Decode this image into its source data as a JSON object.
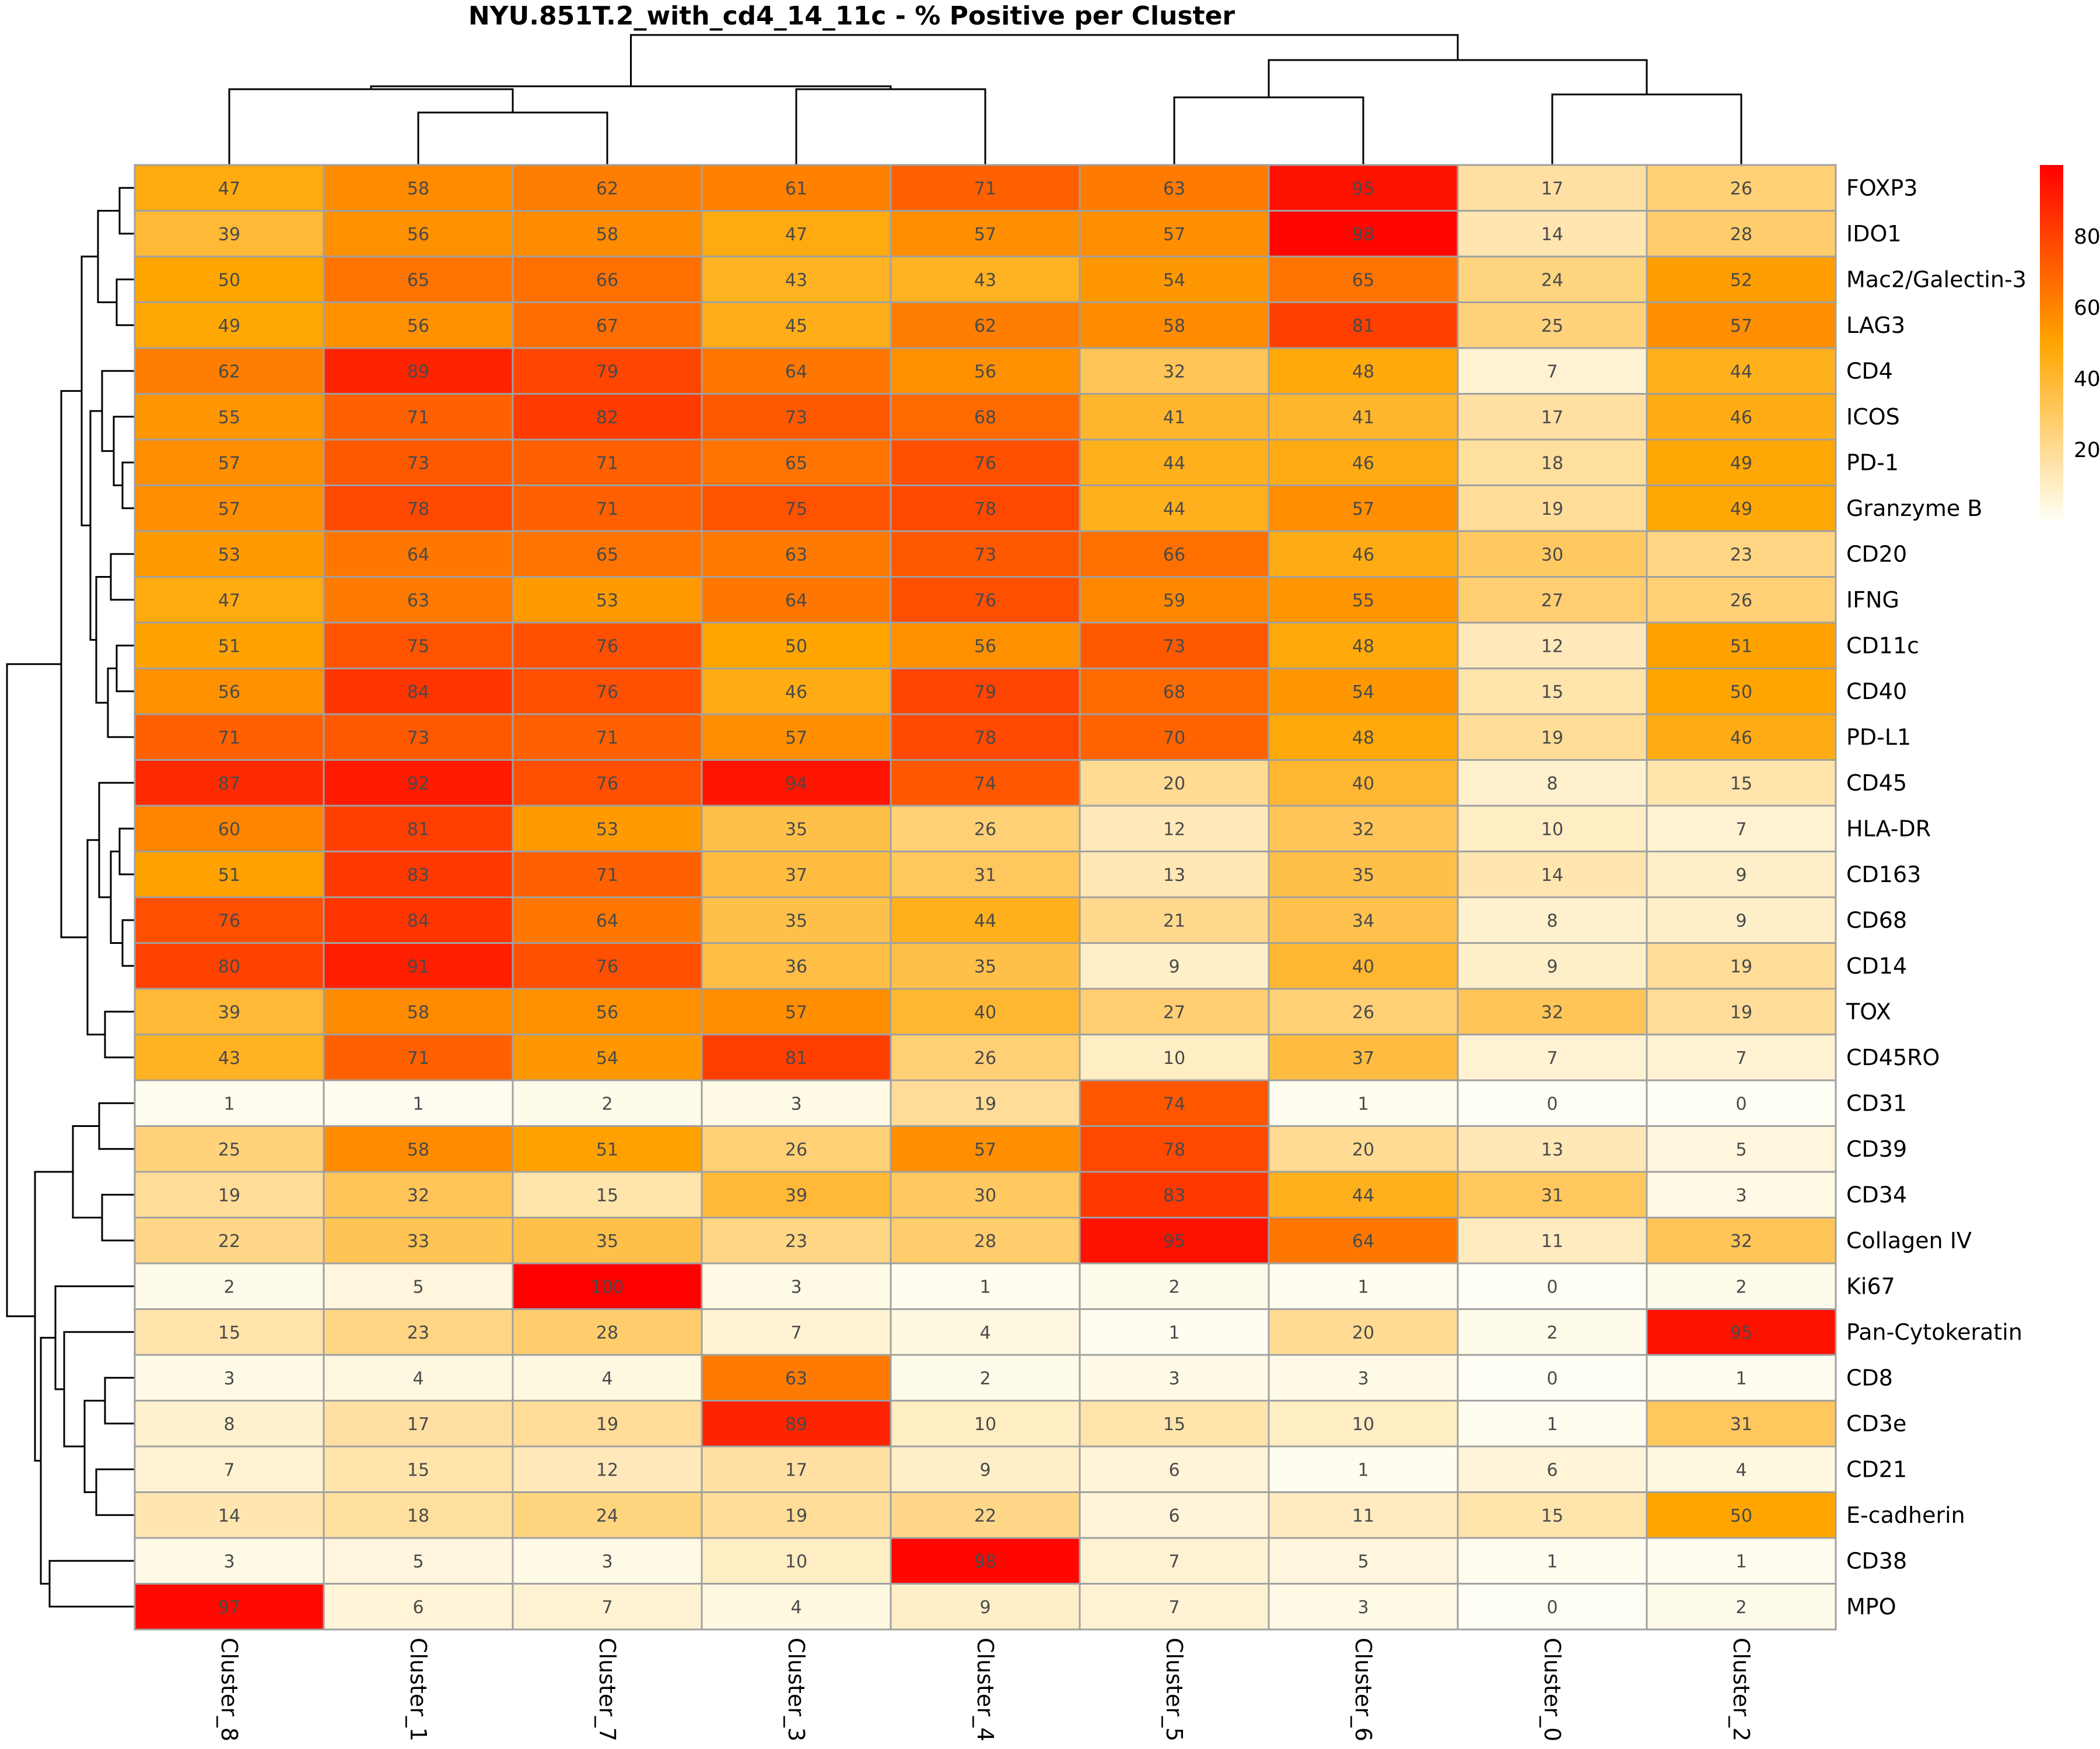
{
  "chart_data": {
    "type": "heatmap",
    "title": "NYU.851T.2_with_cd4_14_11c - % Positive per Cluster",
    "columns": [
      "Cluster_8",
      "Cluster_1",
      "Cluster_7",
      "Cluster_3",
      "Cluster_4",
      "Cluster_5",
      "Cluster_6",
      "Cluster_0",
      "Cluster_2"
    ],
    "rows": [
      "FOXP3",
      "IDO1",
      "Mac2/Galectin-3",
      "LAG3",
      "CD4",
      "ICOS",
      "PD-1",
      "Granzyme B",
      "CD20",
      "IFNG",
      "CD11c",
      "CD40",
      "PD-L1",
      "CD45",
      "HLA-DR",
      "CD163",
      "CD68",
      "CD14",
      "TOX",
      "CD45RO",
      "CD31",
      "CD39",
      "CD34",
      "Collagen IV",
      "Ki67",
      "Pan-Cytokeratin",
      "CD8",
      "CD3e",
      "CD21",
      "E-cadherin",
      "CD38",
      "MPO"
    ],
    "values": [
      [
        47,
        58,
        62,
        61,
        71,
        63,
        95,
        17,
        26
      ],
      [
        39,
        56,
        58,
        47,
        57,
        57,
        98,
        14,
        28
      ],
      [
        50,
        65,
        66,
        43,
        43,
        54,
        65,
        24,
        52
      ],
      [
        49,
        56,
        67,
        45,
        62,
        58,
        81,
        25,
        57
      ],
      [
        62,
        89,
        79,
        64,
        56,
        32,
        48,
        7,
        44
      ],
      [
        55,
        71,
        82,
        73,
        68,
        41,
        41,
        17,
        46
      ],
      [
        57,
        73,
        71,
        65,
        76,
        44,
        46,
        18,
        49
      ],
      [
        57,
        78,
        71,
        75,
        78,
        44,
        57,
        19,
        49
      ],
      [
        53,
        64,
        65,
        63,
        73,
        66,
        46,
        30,
        23
      ],
      [
        47,
        63,
        53,
        64,
        76,
        59,
        55,
        27,
        26
      ],
      [
        51,
        75,
        76,
        50,
        56,
        73,
        48,
        12,
        51
      ],
      [
        56,
        84,
        76,
        46,
        79,
        68,
        54,
        15,
        50
      ],
      [
        71,
        73,
        71,
        57,
        78,
        70,
        48,
        19,
        46
      ],
      [
        87,
        92,
        76,
        94,
        74,
        20,
        40,
        8,
        15
      ],
      [
        60,
        81,
        53,
        35,
        26,
        12,
        32,
        10,
        7
      ],
      [
        51,
        83,
        71,
        37,
        31,
        13,
        35,
        14,
        9
      ],
      [
        76,
        84,
        64,
        35,
        44,
        21,
        34,
        8,
        9
      ],
      [
        80,
        91,
        76,
        36,
        35,
        9,
        40,
        9,
        19
      ],
      [
        39,
        58,
        56,
        57,
        40,
        27,
        26,
        32,
        19
      ],
      [
        43,
        71,
        54,
        81,
        26,
        10,
        37,
        7,
        7
      ],
      [
        1,
        1,
        2,
        3,
        19,
        74,
        1,
        0,
        0
      ],
      [
        25,
        58,
        51,
        26,
        57,
        78,
        20,
        13,
        5
      ],
      [
        19,
        32,
        15,
        39,
        30,
        83,
        44,
        31,
        3
      ],
      [
        22,
        33,
        35,
        23,
        28,
        95,
        64,
        11,
        32
      ],
      [
        2,
        5,
        100,
        3,
        1,
        2,
        1,
        0,
        2
      ],
      [
        15,
        23,
        28,
        7,
        4,
        1,
        20,
        2,
        95
      ],
      [
        3,
        4,
        4,
        63,
        2,
        3,
        3,
        0,
        1
      ],
      [
        8,
        17,
        19,
        89,
        10,
        15,
        10,
        1,
        31
      ],
      [
        7,
        15,
        12,
        17,
        9,
        6,
        1,
        6,
        4
      ],
      [
        14,
        18,
        24,
        19,
        22,
        6,
        11,
        15,
        50
      ],
      [
        3,
        5,
        3,
        10,
        98,
        7,
        5,
        1,
        1
      ],
      [
        97,
        6,
        7,
        4,
        9,
        7,
        3,
        0,
        2
      ]
    ],
    "colorbar": {
      "ticks": [
        20,
        40,
        60,
        80
      ],
      "range": [
        0,
        100
      ]
    },
    "colors": [
      "#fffff5",
      "#ffa500",
      "#ff0000"
    ],
    "legend_position": "right"
  }
}
